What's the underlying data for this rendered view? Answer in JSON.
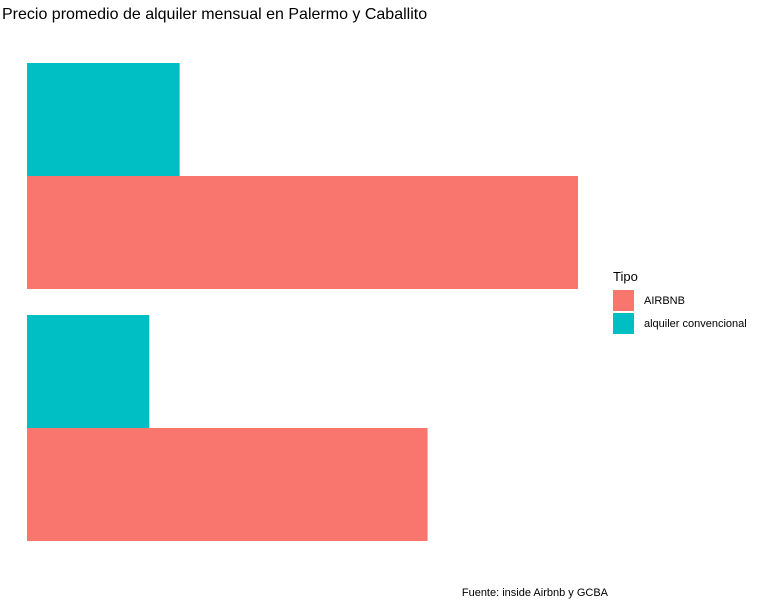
{
  "chart_data": {
    "type": "bar",
    "orientation": "horizontal",
    "title": "Precio promedio de alquiler mensual en Palermo y Caballito",
    "xlabel": "",
    "ylabel": "",
    "caption": "Fuente: inside Airbnb y GCBA",
    "grid": false,
    "legend_position": "right",
    "legend_title": "Tipo",
    "xlim": [
      0,
      1
    ],
    "categories": [
      "",
      ""
    ],
    "series": [
      {
        "name": "AIRBNB",
        "color": "#F8766D",
        "values": [
          1.0,
          0.727
        ]
      },
      {
        "name": "alquiler convencional",
        "color": "#00BFC4",
        "values": [
          0.277,
          0.222
        ]
      }
    ]
  }
}
